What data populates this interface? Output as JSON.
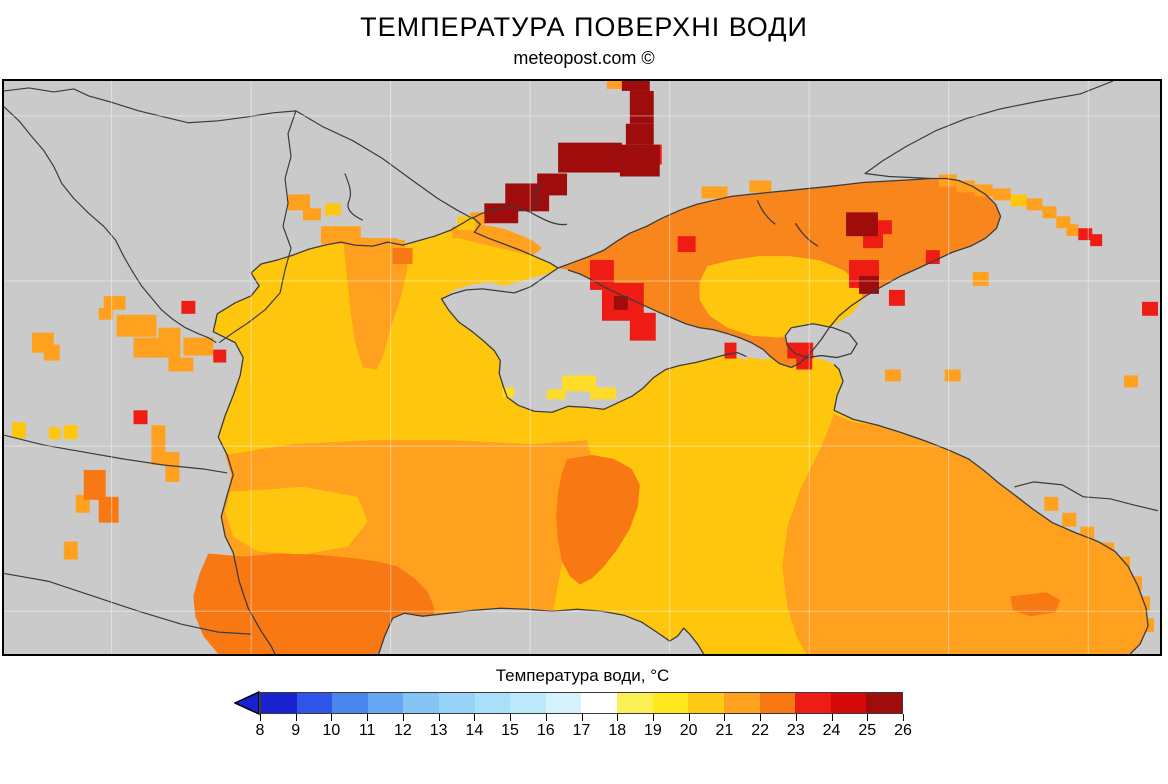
{
  "title": "ТЕМПЕРАТУРА ПОВЕРХНІ ВОДИ",
  "subtitle": "meteopost.com ©",
  "legend": {
    "title": "Температура води, °С",
    "ticks": [
      "8",
      "9",
      "10",
      "11",
      "12",
      "13",
      "14",
      "15",
      "16",
      "17",
      "18",
      "19",
      "20",
      "21",
      "22",
      "23",
      "24",
      "25",
      "26"
    ],
    "cell_colors": [
      "#1822CF",
      "#2E55E8",
      "#4A86EC",
      "#66A8F1",
      "#84C5F4",
      "#98D4F7",
      "#A9E0F9",
      "#BCEAFB",
      "#D6F3FD",
      "#FFFFFF",
      "#FAF055",
      "#FFE81E",
      "#FFC914",
      "#FFA01E",
      "#F87814",
      "#EE1C14",
      "#D40A0A",
      "#9E0C0C"
    ],
    "arrow_color": "#1822CF"
  },
  "map": {
    "palette": {
      "sea_gold": "#FFC60E",
      "sea_orange": "#FFA01E",
      "azov_orange": "#F8861C",
      "sea_dark_orange": "#F87814",
      "sea_red": "#EE1C14",
      "sea_dark_red": "#9E0C0C",
      "sea_yellow": "#FFDC28",
      "land_gray": "#CACACA",
      "border_line": "#3C3C3C",
      "graticule": "#FFFFFF",
      "frame": "#000000"
    }
  }
}
